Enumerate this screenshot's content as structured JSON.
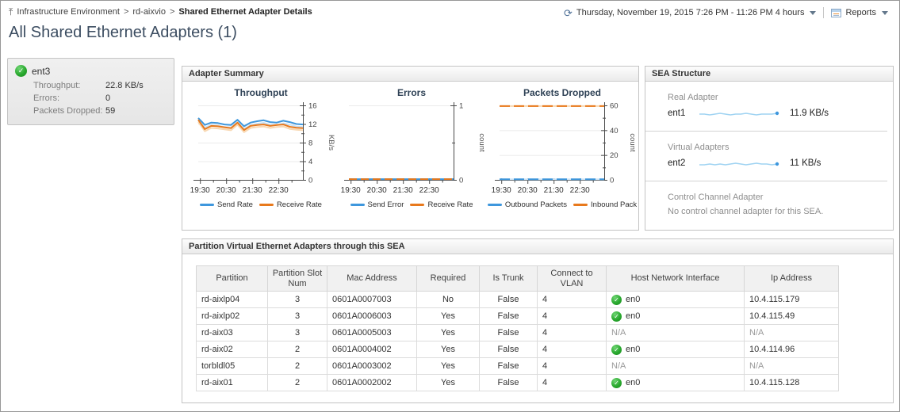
{
  "header": {
    "breadcrumb": [
      {
        "label": "Infrastructure Environment"
      },
      {
        "label": "rd-aixvio"
      },
      {
        "label": "Shared Ethernet Adapter Details"
      }
    ],
    "time_range": "Thursday, November 19, 2015 7:26 PM - 11:26 PM 4 hours",
    "reports_label": "Reports",
    "page_title": "All Shared Ethernet Adapters (1)"
  },
  "icons": {
    "breadcrumb_up": "⤒",
    "time": "⟳",
    "status_ok": "✓"
  },
  "colors": {
    "accent_blue": "#3e97dd",
    "accent_orange": "#e8791c",
    "spark_line": "#9fd3f2",
    "spark_dot": "#3e97dd",
    "status_green": "#2aa92f"
  },
  "adapter_card": {
    "name": "ent3",
    "metrics": [
      {
        "label": "Throughput:",
        "value": "22.8 KB/s"
      },
      {
        "label": "Errors:",
        "value": "0"
      },
      {
        "label": "Packets Dropped:",
        "value": "59"
      }
    ]
  },
  "adapter_summary": {
    "title": "Adapter Summary"
  },
  "chart_data": [
    {
      "type": "line",
      "title": "Throughput",
      "ylabel": "KB/s",
      "ylim": [
        0,
        16
      ],
      "yticks": [
        0,
        4,
        8,
        12,
        16
      ],
      "yminor": [
        2,
        6,
        10,
        14
      ],
      "xmax": 240,
      "xticks": [
        {
          "m": 4,
          "label": "19:30"
        },
        {
          "m": 64,
          "label": "20:30"
        },
        {
          "m": 124,
          "label": "21:30"
        },
        {
          "m": 184,
          "label": "22:30"
        }
      ],
      "xminor": [
        34,
        94,
        154,
        214
      ],
      "series": [
        {
          "name": "Send Rate",
          "color": "#3e97dd",
          "light": "#c9e2f6",
          "offset": -0.55,
          "values": [
            13.3,
            11.8,
            12.3,
            12.2,
            11.9,
            11.8,
            12.9,
            11.5,
            12.3,
            12.6,
            12.8,
            12.4,
            12.3,
            12.7,
            12.4,
            12.0,
            11.9
          ]
        },
        {
          "name": "Receive Rate",
          "color": "#e8791c",
          "light": "#f8d7b0",
          "offset": -0.45,
          "values": [
            12.9,
            10.9,
            11.6,
            11.5,
            11.3,
            11.1,
            12.3,
            10.7,
            11.6,
            11.8,
            11.9,
            11.6,
            11.8,
            11.9,
            11.4,
            11.2,
            11.1
          ]
        }
      ]
    },
    {
      "type": "line",
      "title": "Errors",
      "ylabel": "count",
      "ylim": [
        0,
        1
      ],
      "yticks": [
        0,
        1
      ],
      "yminor": [
        0.5
      ],
      "xmax": 240,
      "xticks": [
        {
          "m": 4,
          "label": "19:30"
        },
        {
          "m": 64,
          "label": "20:30"
        },
        {
          "m": 124,
          "label": "21:30"
        },
        {
          "m": 184,
          "label": "22:30"
        }
      ],
      "xminor": [
        34,
        94,
        154,
        214
      ],
      "series": [
        {
          "name": "Send Error",
          "color": "#3e97dd",
          "values": [
            0.01,
            0.01,
            0.01,
            0.01,
            0.01,
            0.01,
            0.01,
            0.01,
            0.01,
            0.01,
            0.01,
            0.01,
            0.01,
            0.01,
            0.01,
            0.01,
            0.01
          ]
        },
        {
          "name": "Receive Rate",
          "color": "#e8791c",
          "dash": "10 5",
          "values": [
            0.01,
            0.01,
            0.01,
            0.01,
            0.01,
            0.01,
            0.01,
            0.01,
            0.01,
            0.01,
            0.01,
            0.01,
            0.01,
            0.01,
            0.01,
            0.01,
            0.01
          ]
        }
      ]
    },
    {
      "type": "line",
      "title": "Packets Dropped",
      "ylabel": "count",
      "ylim": [
        0,
        60
      ],
      "yticks": [
        0,
        20,
        40,
        60
      ],
      "yminor": [
        10,
        30,
        50
      ],
      "xmax": 240,
      "xticks": [
        {
          "m": 4,
          "label": "19:30"
        },
        {
          "m": 64,
          "label": "20:30"
        },
        {
          "m": 124,
          "label": "21:30"
        },
        {
          "m": 184,
          "label": "22:30"
        }
      ],
      "xminor": [
        34,
        94,
        154,
        214
      ],
      "series": [
        {
          "name": "Outbound Packets",
          "color": "#3e97dd",
          "light": "#cfe6f8",
          "offset": 0,
          "dash": "13 5",
          "values": [
            0.5,
            0.5,
            0.5,
            0.5,
            0.5,
            0.5,
            0.5,
            0.5,
            0.5,
            0.5,
            0.5,
            0.5,
            0.5,
            0.5,
            0.5,
            0.5,
            0.5
          ]
        },
        {
          "name": "Inbound Pack",
          "color": "#e8791c",
          "light": "#f8d7b0",
          "offset": 0,
          "dash": "13 5",
          "values": [
            59.4,
            59.4,
            59.4,
            59.4,
            59.4,
            59.4,
            59.4,
            59.4,
            59.4,
            59.4,
            59.4,
            59.4,
            59.4,
            59.4,
            59.4,
            59.4,
            59.4
          ]
        }
      ]
    }
  ],
  "sea_structure": {
    "title": "SEA Structure",
    "sections": [
      {
        "label": "Real Adapter",
        "adapter": "ent1",
        "value": "11.9 KB/s",
        "sparkline": [
          8,
          8,
          9,
          8,
          7,
          8,
          9,
          8,
          8,
          7,
          8,
          9,
          8,
          8,
          8,
          7
        ]
      },
      {
        "label": "Virtual Adapters",
        "adapter": "ent2",
        "value": "11 KB/s",
        "sparkline": [
          9,
          9,
          8,
          9,
          8,
          9,
          8,
          7,
          8,
          9,
          8,
          7,
          8,
          8,
          9,
          8
        ]
      },
      {
        "label": "Control Channel Adapter",
        "text": "No control channel adapter for this SEA."
      }
    ]
  },
  "partition_table": {
    "title": "Partition Virtual Ethernet Adapters through this SEA",
    "columns": [
      "Partition",
      "Partition Slot Num",
      "Mac Address",
      "Required",
      "Is Trunk",
      "Connect to VLAN",
      "Host Network Interface",
      "Ip Address"
    ],
    "rows": [
      {
        "partition": "rd-aixlp04",
        "slot": "3",
        "mac": "0601A0007003",
        "required": "No",
        "is_trunk": "False",
        "vlan": "4",
        "host_if": "en0",
        "host_if_ok": true,
        "ip": "10.4.115.179"
      },
      {
        "partition": "rd-aixlp02",
        "slot": "3",
        "mac": "0601A0006003",
        "required": "Yes",
        "is_trunk": "False",
        "vlan": "4",
        "host_if": "en0",
        "host_if_ok": true,
        "ip": "10.4.115.49"
      },
      {
        "partition": "rd-aix03",
        "slot": "3",
        "mac": "0601A0005003",
        "required": "Yes",
        "is_trunk": "False",
        "vlan": "4",
        "host_if": "N/A",
        "host_if_ok": false,
        "ip": "N/A"
      },
      {
        "partition": "rd-aix02",
        "slot": "2",
        "mac": "0601A0004002",
        "required": "Yes",
        "is_trunk": "False",
        "vlan": "4",
        "host_if": "en0",
        "host_if_ok": true,
        "ip": "10.4.114.96"
      },
      {
        "partition": "torbldl05",
        "slot": "2",
        "mac": "0601A0003002",
        "required": "Yes",
        "is_trunk": "False",
        "vlan": "4",
        "host_if": "N/A",
        "host_if_ok": false,
        "ip": "N/A"
      },
      {
        "partition": "rd-aix01",
        "slot": "2",
        "mac": "0601A0002002",
        "required": "Yes",
        "is_trunk": "False",
        "vlan": "4",
        "host_if": "en0",
        "host_if_ok": true,
        "ip": "10.4.115.128"
      }
    ]
  }
}
